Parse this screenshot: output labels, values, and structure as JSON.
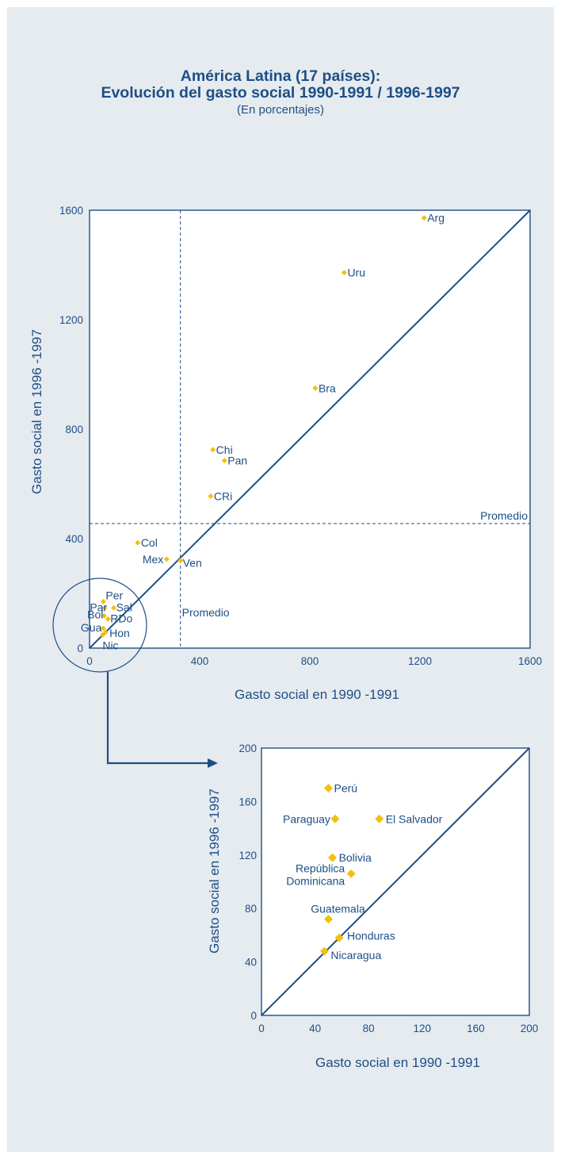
{
  "title_line1": "América Latina (17 países):",
  "title_line2": "Evolución del gasto social 1990-1991 / 1996-1997",
  "subtitle": "(En porcentajes)",
  "colors": {
    "ink": "#1d4f86",
    "marker": "#f2c00f",
    "background": "#e6ebf0"
  },
  "chart_data": [
    {
      "type": "scatter",
      "xlabel": "Gasto social en 1990 -1991",
      "ylabel": "Gasto social en 1996 -1997",
      "xlim": [
        0,
        1600
      ],
      "ylim": [
        0,
        1600
      ],
      "xticks": [
        "0",
        "400",
        "800",
        "1200",
        "1600"
      ],
      "yticks": [
        "0",
        "400",
        "800",
        "1200",
        "1600"
      ],
      "diagonal": true,
      "average": {
        "x": 330,
        "y": 455,
        "label": "Promedio"
      },
      "points": [
        {
          "label": "Arg",
          "x": 1215,
          "y": 1572
        },
        {
          "label": "Uru",
          "x": 925,
          "y": 1372
        },
        {
          "label": "Bra",
          "x": 820,
          "y": 950
        },
        {
          "label": "Chi",
          "x": 448,
          "y": 725
        },
        {
          "label": "Pan",
          "x": 490,
          "y": 685
        },
        {
          "label": "CRi",
          "x": 440,
          "y": 555
        },
        {
          "label": "Col",
          "x": 175,
          "y": 385
        },
        {
          "label": "Mex",
          "x": 280,
          "y": 325
        },
        {
          "label": "Ven",
          "x": 330,
          "y": 320
        },
        {
          "label": "Per",
          "x": 50,
          "y": 170
        },
        {
          "label": "Sal",
          "x": 88,
          "y": 147
        },
        {
          "label": "Par",
          "x": 55,
          "y": 147
        },
        {
          "label": "Bol",
          "x": 53,
          "y": 118
        },
        {
          "label": "RDo",
          "x": 67,
          "y": 106
        },
        {
          "label": "Gua",
          "x": 50,
          "y": 72
        },
        {
          "label": "Hon",
          "x": 58,
          "y": 58
        },
        {
          "label": "Nic",
          "x": 47,
          "y": 48
        }
      ]
    },
    {
      "type": "scatter",
      "xlabel": "Gasto social en 1990 -1991",
      "ylabel": "Gasto social en 1996 -1997",
      "xlim": [
        0,
        200
      ],
      "ylim": [
        0,
        200
      ],
      "xticks": [
        "0",
        "40",
        "80",
        "120",
        "160",
        "200"
      ],
      "yticks": [
        "0",
        "40",
        "80",
        "120",
        "160",
        "200"
      ],
      "diagonal": true,
      "points": [
        {
          "label": "Perú",
          "x": 50,
          "y": 170
        },
        {
          "label": "Paraguay",
          "x": 55,
          "y": 147
        },
        {
          "label": "El Salvador",
          "x": 88,
          "y": 147
        },
        {
          "label": "Bolivia",
          "x": 53,
          "y": 118
        },
        {
          "label": "República Dominicana",
          "label_lines": [
            "República",
            "Dominicana"
          ],
          "x": 67,
          "y": 106
        },
        {
          "label": "Guatemala",
          "x": 50,
          "y": 72
        },
        {
          "label": "Honduras",
          "x": 58,
          "y": 58
        },
        {
          "label": "Nicaragua",
          "x": 47,
          "y": 48
        }
      ]
    }
  ]
}
